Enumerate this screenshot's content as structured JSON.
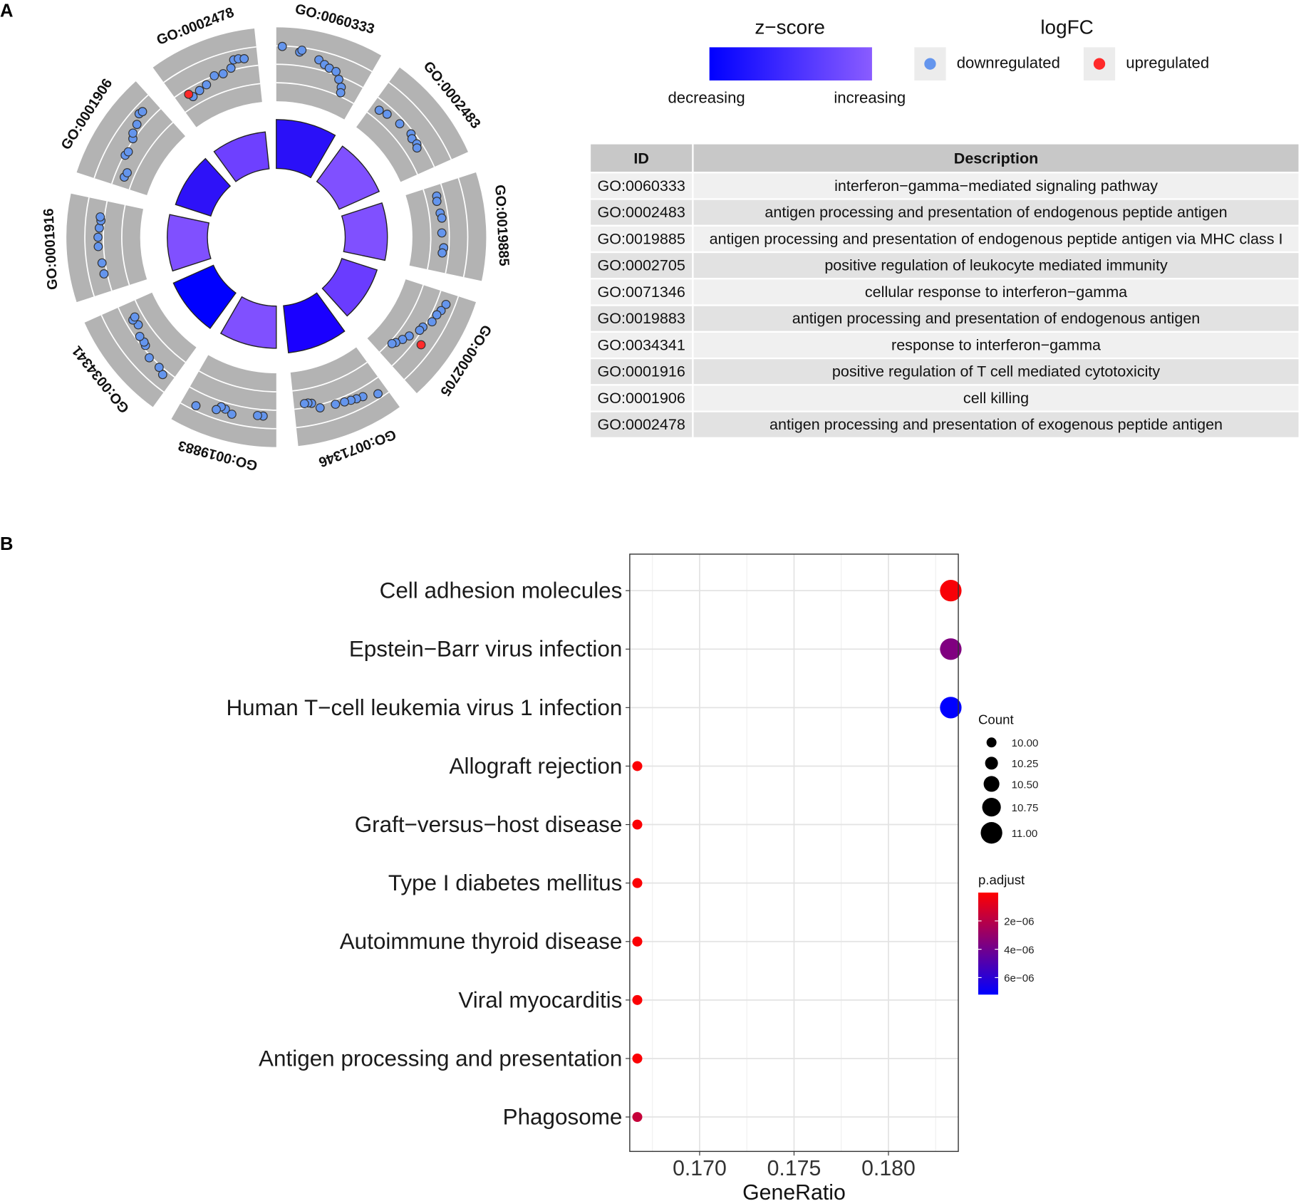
{
  "panels": {
    "a": "A",
    "b": "B"
  },
  "chart_data": [
    {
      "type": "go-circle",
      "terms": [
        {
          "id": "GO:0060333",
          "description": "interferon−gamma−mediated signaling pathway",
          "bar_value": 0.95,
          "zscore_color": "#2a10f8",
          "points": [
            [
              0.06,
              0.1
            ],
            [
              0.24,
              -0.1
            ],
            [
              0.26,
              0.0
            ],
            [
              0.45,
              -0.3
            ],
            [
              0.52,
              -0.45
            ],
            [
              0.58,
              -0.55
            ],
            [
              0.66,
              -0.6
            ],
            [
              0.72,
              -0.9
            ],
            [
              0.78,
              -1.2
            ],
            [
              0.8,
              -1.45
            ]
          ],
          "up": []
        },
        {
          "id": "GO:0002483",
          "description": "antigen processing and presentation of endogenous peptide antigen",
          "bar_value": 0.85,
          "zscore_color": "#8050ff",
          "points": [
            [
              0.1,
              -1.2
            ],
            [
              0.2,
              -1.1
            ],
            [
              0.38,
              -1.0
            ],
            [
              0.55,
              -0.9
            ],
            [
              0.6,
              -1.0
            ],
            [
              0.68,
              -0.95
            ],
            [
              0.72,
              -1.05
            ]
          ],
          "up": []
        },
        {
          "id": "GO:0019885",
          "description": "antigen processing and presentation of endogenous peptide antigen via MHC class I",
          "bar_value": 0.82,
          "zscore_color": "#8050ff",
          "points": [
            [
              0.12,
              -1.1
            ],
            [
              0.18,
              -1.15
            ],
            [
              0.32,
              -1.1
            ],
            [
              0.38,
              -1.05
            ],
            [
              0.55,
              -1.1
            ],
            [
              0.72,
              -1.0
            ],
            [
              0.78,
              -1.05
            ]
          ],
          "up": []
        },
        {
          "id": "GO:0002705",
          "description": "positive regulation of leukocyte mediated immunity",
          "bar_value": 0.72,
          "zscore_color": "#6a3cff",
          "points": [
            [
              0.12,
              -0.3
            ],
            [
              0.2,
              -0.4
            ],
            [
              0.26,
              -0.5
            ],
            [
              0.35,
              -0.55
            ],
            [
              0.45,
              -0.8
            ],
            [
              0.5,
              -0.85
            ],
            [
              0.62,
              -1.1
            ],
            [
              0.7,
              -1.25
            ],
            [
              0.78,
              -1.4
            ],
            [
              0.82,
              -1.5
            ]
          ],
          "up": [
            [
              0.62,
              -0.4
            ]
          ]
        },
        {
          "id": "GO:0071346",
          "description": "cellular response to interferon−gamma",
          "bar_value": 0.92,
          "zscore_color": "#1a00ff",
          "points": [
            [
              0.1,
              -0.1
            ],
            [
              0.25,
              -0.35
            ],
            [
              0.32,
              -0.4
            ],
            [
              0.38,
              -0.45
            ],
            [
              0.45,
              -0.5
            ],
            [
              0.55,
              -0.55
            ],
            [
              0.72,
              -0.6
            ],
            [
              0.8,
              -0.9
            ],
            [
              0.84,
              -0.95
            ],
            [
              0.88,
              -0.95
            ]
          ],
          "up": []
        },
        {
          "id": "GO:0019883",
          "description": "antigen processing and presentation of endogenous antigen",
          "bar_value": 0.82,
          "zscore_color": "#8050ff",
          "points": [
            [
              0.14,
              -0.45
            ],
            [
              0.2,
              -0.45
            ],
            [
              0.47,
              -0.3
            ],
            [
              0.55,
              -0.45
            ],
            [
              0.6,
              -0.5
            ],
            [
              0.64,
              -0.3
            ],
            [
              0.85,
              -0.1
            ]
          ],
          "up": []
        },
        {
          "id": "GO:0034341",
          "description": "response to interferon−gamma",
          "bar_value": 0.85,
          "zscore_color": "#0000ff",
          "points": [
            [
              0.12,
              -0.5
            ],
            [
              0.2,
              -0.65
            ],
            [
              0.35,
              -0.65
            ],
            [
              0.48,
              -0.9
            ],
            [
              0.52,
              -0.95
            ],
            [
              0.6,
              -0.95
            ],
            [
              0.72,
              -1.2
            ],
            [
              0.8,
              -1.1
            ],
            [
              0.82,
              -1.25
            ]
          ],
          "up": []
        },
        {
          "id": "GO:0001916",
          "description": "positive regulation of T cell mediated cytotoxicity",
          "bar_value": 0.78,
          "zscore_color": "#8050ff",
          "points": [
            [
              0.2,
              -0.6
            ],
            [
              0.32,
              -0.6
            ],
            [
              0.5,
              -0.5
            ],
            [
              0.6,
              -0.5
            ],
            [
              0.7,
              -0.55
            ],
            [
              0.78,
              -0.6
            ],
            [
              0.82,
              -0.55
            ]
          ],
          "up": []
        },
        {
          "id": "GO:0001906",
          "description": "cell killing",
          "bar_value": 0.72,
          "zscore_color": "#2e12f8",
          "points": [
            [
              0.12,
              -1.2
            ],
            [
              0.18,
              -1.25
            ],
            [
              0.35,
              -0.8
            ],
            [
              0.4,
              -0.85
            ],
            [
              0.55,
              -0.7
            ],
            [
              0.6,
              -0.55
            ],
            [
              0.7,
              -0.45
            ],
            [
              0.8,
              -0.2
            ],
            [
              0.84,
              -0.25
            ]
          ],
          "up": []
        },
        {
          "id": "GO:0002478",
          "description": "antigen processing and presentation of exogenous peptide antigen",
          "bar_value": 0.72,
          "zscore_color": "#6e40ff",
          "points": [
            [
              0.18,
              -1.2
            ],
            [
              0.28,
              -1.1
            ],
            [
              0.38,
              -1.0
            ],
            [
              0.5,
              -0.75
            ],
            [
              0.6,
              -0.8
            ],
            [
              0.7,
              -0.65
            ],
            [
              0.75,
              -0.3
            ],
            [
              0.8,
              -0.3
            ],
            [
              0.86,
              -0.35
            ]
          ],
          "up": [
            [
              0.15,
              -1.0
            ]
          ]
        }
      ],
      "logfc_range": [
        -2.5,
        1.0
      ],
      "legend": {
        "zscore_title": "z−score",
        "zscore_low": "decreasing",
        "zscore_high": "increasing",
        "zscore_colors": [
          "#0000ff",
          "#8a5cff"
        ],
        "logfc_title": "logFC",
        "down_label": "downregulated",
        "up_label": "upregulated",
        "down_color": "#6495ed",
        "up_color": "#ff2a2a"
      },
      "table_headers": [
        "ID",
        "Description"
      ]
    },
    {
      "type": "scatter",
      "categories": [
        "Cell adhesion molecules",
        "Epstein−Barr virus infection",
        "Human T−cell leukemia virus 1 infection",
        "Allograft rejection",
        "Graft−versus−host disease",
        "Type I diabetes mellitus",
        "Autoimmune thyroid disease",
        "Viral myocarditis",
        "Antigen processing and presentation",
        "Phagosome"
      ],
      "gene_ratio": [
        0.1833,
        0.1833,
        0.1833,
        0.1667,
        0.1667,
        0.1667,
        0.1667,
        0.1667,
        0.1667,
        0.1667
      ],
      "count": [
        11,
        11,
        11,
        10,
        10,
        10,
        10,
        10,
        10,
        10
      ],
      "p_adjust": [
        2e-07,
        3.6e-06,
        7.2e-06,
        1e-07,
        1e-07,
        1e-07,
        1e-07,
        1e-07,
        1e-07,
        1.6e-06
      ],
      "xlabel": "GeneRatio",
      "xlim": [
        0.1663,
        0.1837
      ],
      "xticks": [
        {
          "v": 0.17,
          "label": "0.170"
        },
        {
          "v": 0.175,
          "label": "0.175"
        },
        {
          "v": 0.18,
          "label": "0.180"
        }
      ],
      "grid": true,
      "size_legend": {
        "title": "Count",
        "values": [
          10,
          10.25,
          10.5,
          10.75,
          11
        ],
        "labels": [
          "10.00",
          "10.25",
          "10.50",
          "10.75",
          "11.00"
        ]
      },
      "color_legend": {
        "title": "p.adjust",
        "range": [
          0,
          7.2e-06
        ],
        "ticks": [
          {
            "v": 2e-06,
            "label": "2e−06"
          },
          {
            "v": 4e-06,
            "label": "4e−06"
          },
          {
            "v": 6e-06,
            "label": "6e−06"
          }
        ],
        "low_color": "#ff0000",
        "high_color": "#0000ff"
      },
      "legend_position": "right"
    }
  ]
}
